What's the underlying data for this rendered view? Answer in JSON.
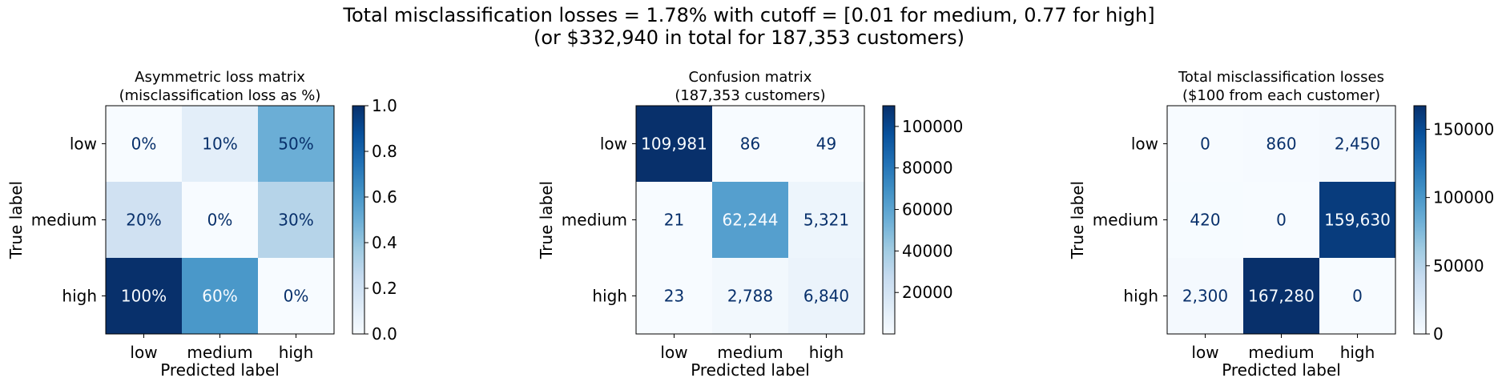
{
  "suptitle": {
    "line1": "Total misclassification losses = 1.78% with cutoff = [0.01 for medium, 0.77 for high]",
    "line2": "(or $332,940 in total for 187,353 customers)"
  },
  "colors": {
    "cmap": [
      "#f7fbff",
      "#deebf7",
      "#c6dbef",
      "#9ecae1",
      "#6baed6",
      "#4292c6",
      "#2171b5",
      "#08519c",
      "#08306b"
    ],
    "dark_text": "#08306b",
    "light_text": "#f7fbff"
  },
  "chart_data": [
    {
      "type": "heatmap",
      "title_lines": [
        "Asymmetric loss matrix",
        "(misclassification loss as %)"
      ],
      "xlabel": "Predicted label",
      "ylabel": "True label",
      "x_categories": [
        "low",
        "medium",
        "high"
      ],
      "y_categories": [
        "low",
        "medium",
        "high"
      ],
      "values": [
        [
          0,
          0.1,
          0.5
        ],
        [
          0.2,
          0,
          0.3
        ],
        [
          1.0,
          0.6,
          0
        ]
      ],
      "labels": [
        [
          "0%",
          "10%",
          "50%"
        ],
        [
          "20%",
          "0%",
          "30%"
        ],
        [
          "100%",
          "60%",
          "0%"
        ]
      ],
      "colorbar": {
        "min": 0,
        "max": 1.0,
        "ticks": [
          0.0,
          0.2,
          0.4,
          0.6,
          0.8,
          1.0
        ],
        "tick_labels": [
          "0.0",
          "0.2",
          "0.4",
          "0.6",
          "0.8",
          "1.0"
        ]
      }
    },
    {
      "type": "heatmap",
      "title_lines": [
        "Confusion matrix",
        "(187,353 customers)"
      ],
      "xlabel": "Predicted label",
      "ylabel": "True label",
      "x_categories": [
        "low",
        "medium",
        "high"
      ],
      "y_categories": [
        "low",
        "medium",
        "high"
      ],
      "values": [
        [
          109981,
          86,
          49
        ],
        [
          21,
          62244,
          5321
        ],
        [
          23,
          2788,
          6840
        ]
      ],
      "labels": [
        [
          "109,981",
          "86",
          "49"
        ],
        [
          "21",
          "62,244",
          "5,321"
        ],
        [
          "23",
          "2,788",
          "6,840"
        ]
      ],
      "colorbar": {
        "min": 21,
        "max": 109981,
        "ticks": [
          20000,
          40000,
          60000,
          80000,
          100000
        ],
        "tick_labels": [
          "20000",
          "40000",
          "60000",
          "80000",
          "100000"
        ]
      }
    },
    {
      "type": "heatmap",
      "title_lines": [
        "Total misclassification losses",
        "($100 from each customer)"
      ],
      "xlabel": "Predicted label",
      "ylabel": "True label",
      "x_categories": [
        "low",
        "medium",
        "high"
      ],
      "y_categories": [
        "low",
        "medium",
        "high"
      ],
      "values": [
        [
          0,
          860,
          2450
        ],
        [
          420,
          0,
          159630
        ],
        [
          2300,
          167280,
          0
        ]
      ],
      "labels": [
        [
          "0",
          "860",
          "2,450"
        ],
        [
          "420",
          "0",
          "159,630"
        ],
        [
          "2,300",
          "167,280",
          "0"
        ]
      ],
      "colorbar": {
        "min": 0,
        "max": 167280,
        "ticks": [
          0,
          50000,
          100000,
          150000
        ],
        "tick_labels": [
          "0",
          "50000",
          "100000",
          "150000"
        ]
      }
    }
  ]
}
